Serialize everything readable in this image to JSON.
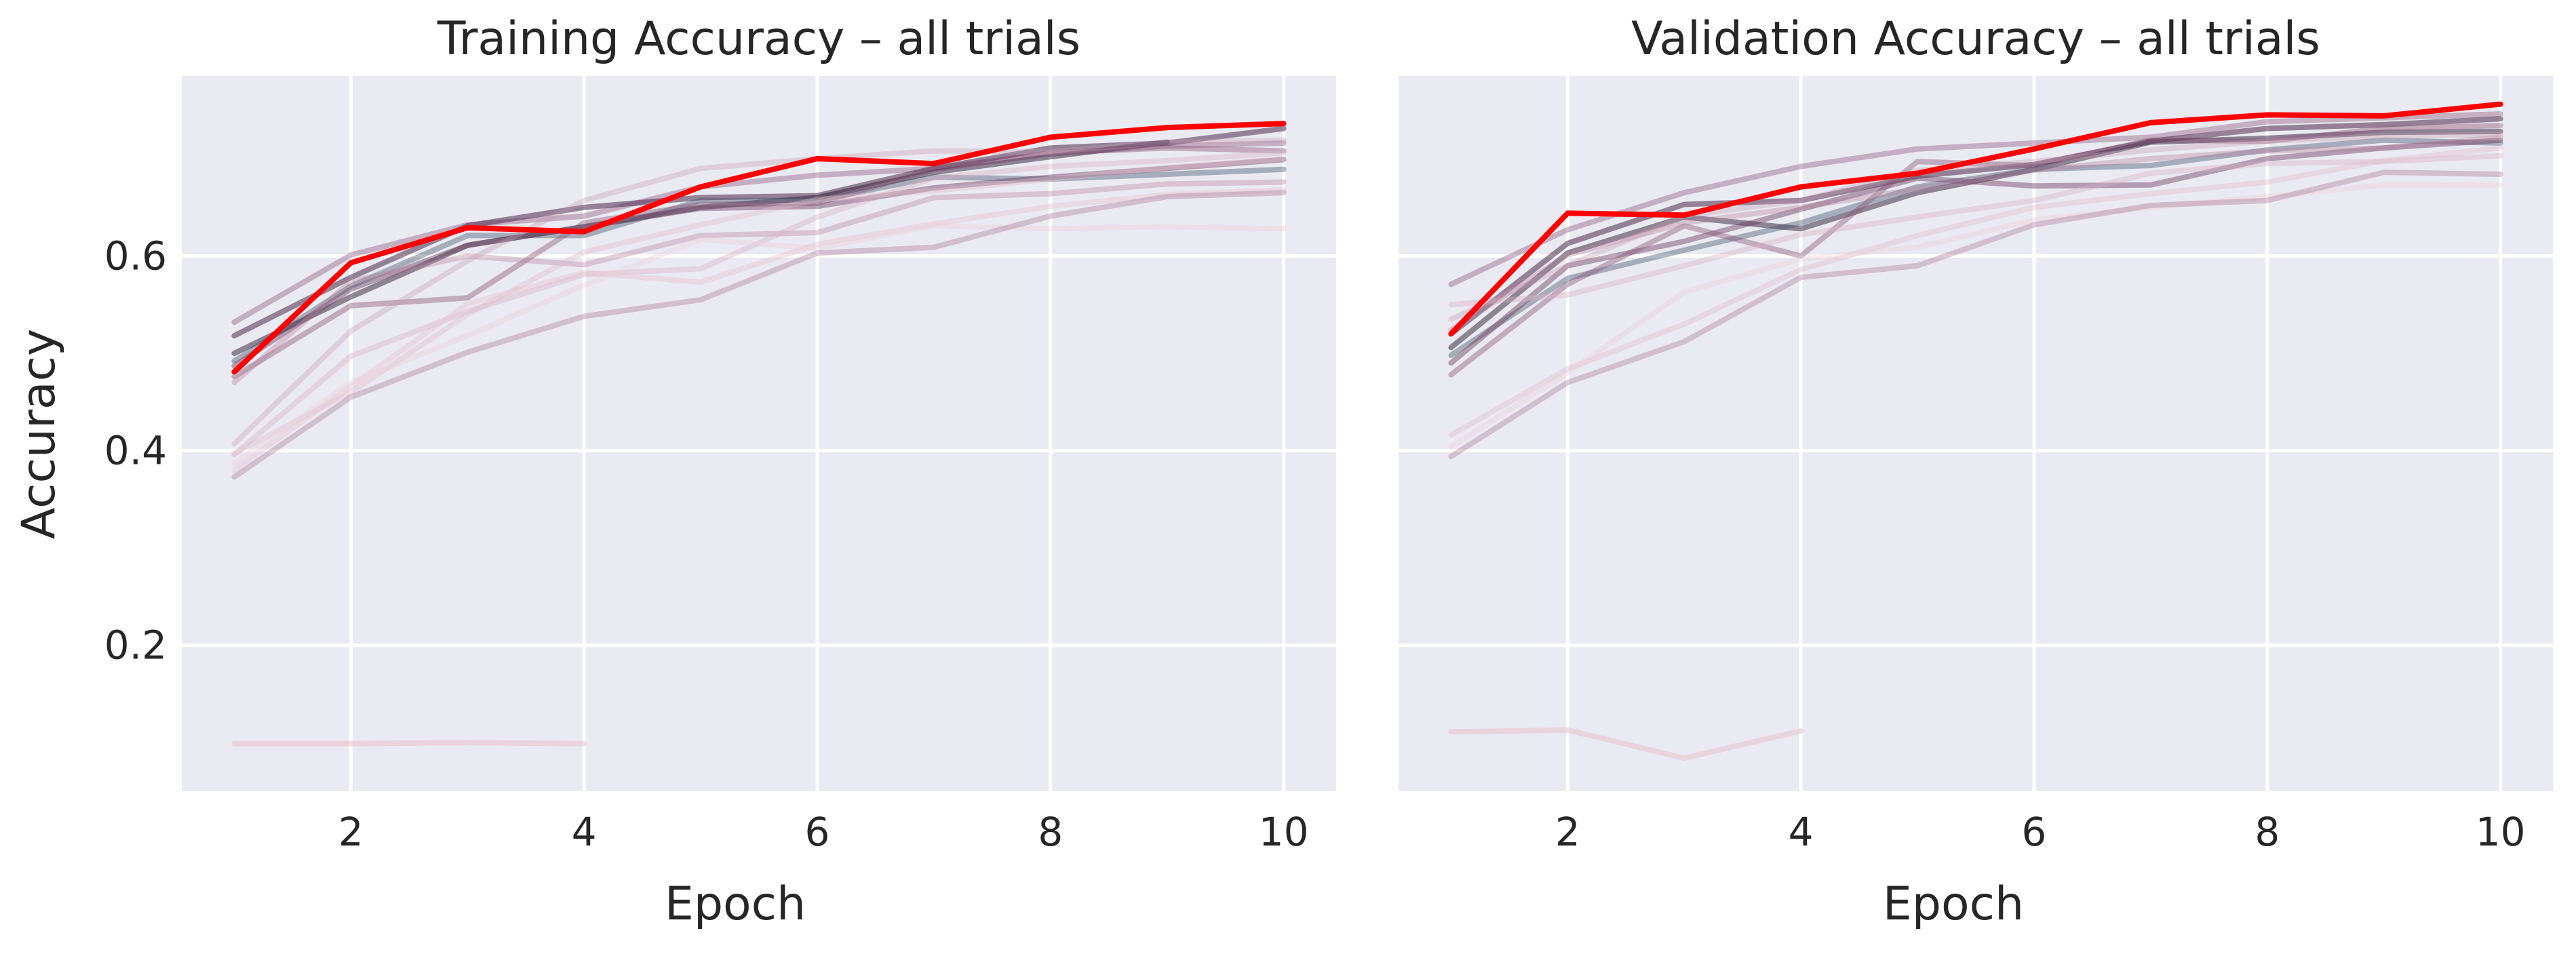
{
  "chart_data": [
    {
      "type": "line",
      "title": "Training Accuracy – all trials",
      "xlabel": "Epoch",
      "ylabel": "Accuracy",
      "xlim": [
        0.55,
        10.45
      ],
      "ylim": [
        0.05,
        0.785
      ],
      "xticks": [
        2,
        4,
        6,
        8,
        10
      ],
      "yticks": [
        0.2,
        0.4,
        0.6
      ],
      "xtick_labels": [
        "2",
        "4",
        "6",
        "8",
        "10"
      ],
      "ytick_labels": [
        "0.2",
        "0.4",
        "0.6"
      ],
      "grid": true,
      "series": [
        {
          "x": [
            1,
            2,
            3,
            4,
            5,
            6,
            7,
            8,
            9,
            10
          ],
          "y": [
            0.532,
            0.601,
            0.632,
            0.641,
            0.671,
            0.683,
            0.69,
            0.705,
            0.713,
            0.716
          ],
          "color": "#8e5b7e",
          "opacity": 0.42,
          "highlight": false
        },
        {
          "x": [
            1,
            2,
            3,
            4,
            5,
            6,
            7,
            8,
            9,
            10
          ],
          "y": [
            0.518,
            0.578,
            0.631,
            0.65,
            0.66,
            0.662,
            0.69,
            0.711,
            0.716,
            0.731
          ],
          "color": "#4c2a4b",
          "opacity": 0.55,
          "highlight": false
        },
        {
          "x": [
            1,
            2,
            3,
            4,
            5,
            6,
            7,
            8,
            9
          ],
          "y": [
            0.5,
            0.558,
            0.611,
            0.63,
            0.65,
            0.66,
            0.686,
            0.702,
            0.717
          ],
          "color": "#2d1b33",
          "opacity": 0.5,
          "highlight": false
        },
        {
          "x": [
            1,
            2,
            3,
            4,
            5,
            6,
            7,
            8,
            9,
            10
          ],
          "y": [
            0.492,
            0.569,
            0.621,
            0.621,
            0.657,
            0.657,
            0.681,
            0.679,
            0.684,
            0.689
          ],
          "color": "#3f4f66",
          "opacity": 0.4,
          "highlight": false
        },
        {
          "x": [
            1,
            2,
            3,
            4,
            5,
            6,
            7,
            8,
            9,
            10
          ],
          "y": [
            0.487,
            0.566,
            0.611,
            0.63,
            0.649,
            0.651,
            0.67,
            0.681,
            0.69,
            0.699
          ],
          "color": "#6c3d5f",
          "opacity": 0.45,
          "highlight": false
        },
        {
          "x": [
            1,
            2,
            3,
            4,
            5,
            6,
            7,
            8,
            9,
            10
          ],
          "y": [
            0.476,
            0.549,
            0.557,
            0.634,
            0.653,
            0.654,
            0.689,
            0.706,
            0.711,
            0.708
          ],
          "color": "#875374",
          "opacity": 0.42,
          "highlight": false
        },
        {
          "x": [
            1,
            2,
            3,
            4,
            5,
            6,
            7,
            8,
            9,
            10
          ],
          "y": [
            0.47,
            0.574,
            0.6,
            0.591,
            0.621,
            0.624,
            0.66,
            0.664,
            0.674,
            0.676
          ],
          "color": "#b9849f",
          "opacity": 0.38,
          "highlight": false
        },
        {
          "x": [
            1,
            2,
            3,
            4,
            5,
            6,
            7,
            8,
            9,
            10
          ],
          "y": [
            0.407,
            0.523,
            0.595,
            0.657,
            0.69,
            0.7,
            0.708,
            0.707,
            0.717,
            0.719
          ],
          "color": "#c79ab1",
          "opacity": 0.35,
          "highlight": false
        },
        {
          "x": [
            1,
            2,
            3,
            4,
            5,
            6,
            7,
            8,
            9,
            10
          ],
          "y": [
            0.396,
            0.497,
            0.543,
            0.581,
            0.587,
            0.64,
            0.68,
            0.692,
            0.698,
            0.706
          ],
          "color": "#d7b1c3",
          "opacity": 0.4,
          "highlight": false
        },
        {
          "x": [
            1,
            2,
            3,
            4,
            5,
            6,
            7,
            8,
            9,
            10
          ],
          "y": [
            0.397,
            0.46,
            0.54,
            0.604,
            0.632,
            0.658,
            0.667,
            0.679,
            0.691,
            0.7
          ],
          "color": "#e0bdcb",
          "opacity": 0.42,
          "highlight": false
        },
        {
          "x": [
            1,
            2,
            3,
            4,
            5,
            6,
            7,
            8,
            9,
            10
          ],
          "y": [
            0.38,
            0.466,
            0.551,
            0.583,
            0.573,
            0.612,
            0.633,
            0.651,
            0.663,
            0.668
          ],
          "color": "#e7c5d0",
          "opacity": 0.45,
          "highlight": false
        },
        {
          "x": [
            1,
            2,
            3,
            4,
            5,
            6,
            7,
            8,
            9,
            10
          ],
          "y": [
            0.387,
            0.47,
            0.518,
            0.57,
            0.617,
            0.608,
            0.631,
            0.628,
            0.63,
            0.628
          ],
          "color": "#ecd1da",
          "opacity": 0.42,
          "highlight": false
        },
        {
          "x": [
            1,
            2,
            3,
            4,
            5,
            6,
            7,
            8,
            9,
            10
          ],
          "y": [
            0.373,
            0.455,
            0.501,
            0.538,
            0.555,
            0.603,
            0.609,
            0.641,
            0.661,
            0.665
          ],
          "color": "#a97593",
          "opacity": 0.38,
          "highlight": false
        },
        {
          "x": [
            1,
            2,
            3,
            4
          ],
          "y": [
            0.099,
            0.099,
            0.1,
            0.099
          ],
          "color": "#e8c4cf",
          "opacity": 0.6,
          "highlight": false
        },
        {
          "x": [
            1,
            2,
            3,
            4,
            5,
            6,
            7,
            8,
            9,
            10
          ],
          "y": [
            0.481,
            0.593,
            0.629,
            0.625,
            0.671,
            0.7,
            0.695,
            0.722,
            0.732,
            0.736
          ],
          "color": "#ff0000",
          "opacity": 1,
          "highlight": true
        }
      ]
    },
    {
      "type": "line",
      "title": "Validation Accuracy – all trials",
      "xlabel": "Epoch",
      "ylabel": "",
      "xlim": [
        0.55,
        10.45
      ],
      "ylim": [
        0.05,
        0.785
      ],
      "xticks": [
        2,
        4,
        6,
        8,
        10
      ],
      "yticks": [
        0.2,
        0.4,
        0.6
      ],
      "xtick_labels": [
        "2",
        "4",
        "6",
        "8",
        "10"
      ],
      "ytick_labels": [],
      "grid": true,
      "series": [
        {
          "x": [
            1,
            2,
            3,
            4,
            5,
            6,
            7,
            8,
            9,
            10
          ],
          "y": [
            0.571,
            0.627,
            0.665,
            0.692,
            0.71,
            0.716,
            0.722,
            0.738,
            0.742,
            0.746
          ],
          "color": "#8e5b7e",
          "opacity": 0.42,
          "highlight": false
        },
        {
          "x": [
            1,
            2,
            3,
            4,
            5,
            6,
            7,
            8,
            9,
            10
          ],
          "y": [
            0.52,
            0.613,
            0.653,
            0.657,
            0.682,
            0.694,
            0.718,
            0.731,
            0.735,
            0.741
          ],
          "color": "#4c2a4b",
          "opacity": 0.55,
          "highlight": false
        },
        {
          "x": [
            1,
            2,
            3,
            4,
            5,
            6,
            7,
            8,
            9,
            10
          ],
          "y": [
            0.506,
            0.603,
            0.64,
            0.628,
            0.665,
            0.689,
            0.717,
            0.721,
            0.727,
            0.728
          ],
          "color": "#2d1b33",
          "opacity": 0.5,
          "highlight": false
        },
        {
          "x": [
            1,
            2,
            3,
            4,
            5,
            6,
            7,
            8,
            9,
            10
          ],
          "y": [
            0.498,
            0.577,
            0.606,
            0.634,
            0.671,
            0.689,
            0.693,
            0.709,
            0.719,
            0.716
          ],
          "color": "#3f4f66",
          "opacity": 0.4,
          "highlight": false
        },
        {
          "x": [
            1,
            2,
            3,
            4,
            5,
            6,
            7,
            8,
            9,
            10
          ],
          "y": [
            0.49,
            0.59,
            0.615,
            0.648,
            0.68,
            0.672,
            0.673,
            0.7,
            0.711,
            0.719
          ],
          "color": "#6c3d5f",
          "opacity": 0.45,
          "highlight": false
        },
        {
          "x": [
            1,
            2,
            3,
            4,
            5,
            6,
            7,
            8,
            9,
            10
          ],
          "y": [
            0.478,
            0.571,
            0.631,
            0.6,
            0.697,
            0.693,
            0.719,
            0.718,
            0.731,
            0.734
          ],
          "color": "#875374",
          "opacity": 0.42,
          "highlight": false
        },
        {
          "x": [
            1,
            2,
            3,
            4,
            5,
            6,
            7,
            8,
            9,
            10
          ],
          "y": [
            0.524,
            0.601,
            0.634,
            0.65,
            0.669,
            0.688,
            0.7,
            0.708,
            0.711,
            0.722
          ],
          "color": "#b9849f",
          "opacity": 0.38,
          "highlight": false
        },
        {
          "x": [
            1,
            2,
            3,
            4,
            5,
            6,
            7,
            8,
            9,
            10
          ],
          "y": [
            0.535,
            0.59,
            0.641,
            0.657,
            0.688,
            0.697,
            0.709,
            0.718,
            0.723,
            0.725
          ],
          "color": "#c79ab1",
          "opacity": 0.35,
          "highlight": false
        },
        {
          "x": [
            1,
            2,
            3,
            4,
            5,
            6,
            7,
            8,
            9,
            10
          ],
          "y": [
            0.55,
            0.56,
            0.59,
            0.622,
            0.64,
            0.657,
            0.685,
            0.695,
            0.697,
            0.703
          ],
          "color": "#d7b1c3",
          "opacity": 0.4,
          "highlight": false
        },
        {
          "x": [
            1,
            2,
            3,
            4,
            5,
            6,
            7,
            8,
            9,
            10
          ],
          "y": [
            0.416,
            0.484,
            0.53,
            0.586,
            0.621,
            0.65,
            0.664,
            0.676,
            0.698,
            0.711
          ],
          "color": "#e0bdcb",
          "opacity": 0.42,
          "highlight": false
        },
        {
          "x": [
            1,
            2,
            3,
            4,
            5,
            6,
            7,
            8,
            9,
            10
          ],
          "y": [
            0.404,
            0.48,
            0.563,
            0.597,
            0.609,
            0.637,
            0.65,
            0.661,
            0.673,
            0.673
          ],
          "color": "#ecd1da",
          "opacity": 0.42,
          "highlight": false
        },
        {
          "x": [
            1,
            2,
            3,
            4,
            5,
            6,
            7,
            8,
            9,
            10
          ],
          "y": [
            0.394,
            0.47,
            0.512,
            0.578,
            0.59,
            0.632,
            0.652,
            0.657,
            0.686,
            0.684
          ],
          "color": "#a97593",
          "opacity": 0.38,
          "highlight": false
        },
        {
          "x": [
            1,
            2,
            3,
            4
          ],
          "y": [
            0.111,
            0.113,
            0.084,
            0.112
          ],
          "color": "#e8c4cf",
          "opacity": 0.6,
          "highlight": false
        },
        {
          "x": [
            1,
            2,
            3,
            4,
            5,
            6,
            7,
            8,
            9,
            10
          ],
          "y": [
            0.52,
            0.644,
            0.642,
            0.671,
            0.685,
            0.71,
            0.737,
            0.745,
            0.744,
            0.756
          ],
          "color": "#ff0000",
          "opacity": 1,
          "highlight": true
        }
      ]
    }
  ]
}
